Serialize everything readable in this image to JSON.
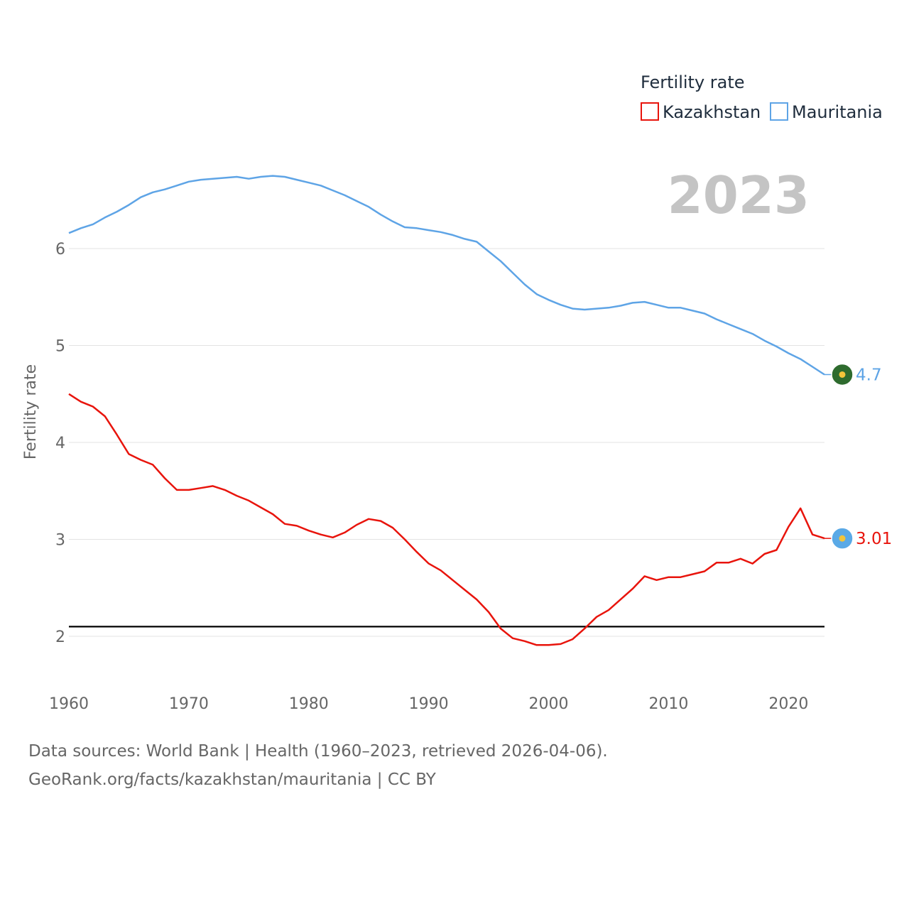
{
  "chart_data": {
    "type": "line",
    "title": "Fertility rate",
    "ylabel": "Fertility rate",
    "xlabel": "",
    "year_label": "2023",
    "xlim": [
      1960,
      2023
    ],
    "ylim": [
      1.5,
      7.3
    ],
    "x_ticks": [
      1960,
      1970,
      1980,
      1990,
      2000,
      2010,
      2020
    ],
    "y_ticks": [
      2,
      3,
      4,
      5,
      6
    ],
    "reference_line": 2.1,
    "legend_title": "Fertility rate",
    "x": [
      1960,
      1961,
      1962,
      1963,
      1964,
      1965,
      1966,
      1967,
      1968,
      1969,
      1970,
      1971,
      1972,
      1973,
      1974,
      1975,
      1976,
      1977,
      1978,
      1979,
      1980,
      1981,
      1982,
      1983,
      1984,
      1985,
      1986,
      1987,
      1988,
      1989,
      1990,
      1991,
      1992,
      1993,
      1994,
      1995,
      1996,
      1997,
      1998,
      1999,
      2000,
      2001,
      2002,
      2003,
      2004,
      2005,
      2006,
      2007,
      2008,
      2009,
      2010,
      2011,
      2012,
      2013,
      2014,
      2015,
      2016,
      2017,
      2018,
      2019,
      2020,
      2021,
      2022,
      2023
    ],
    "series": [
      {
        "name": "Kazakhstan",
        "color": "#e8140c",
        "end_label": "3.01",
        "flag_icon": "kazakhstan-flag-icon",
        "flag_color": "#5aa9e6",
        "values": [
          4.5,
          4.42,
          4.37,
          4.27,
          4.08,
          3.88,
          3.82,
          3.77,
          3.63,
          3.51,
          3.51,
          3.53,
          3.55,
          3.51,
          3.45,
          3.4,
          3.33,
          3.26,
          3.16,
          3.14,
          3.09,
          3.05,
          3.02,
          3.07,
          3.15,
          3.21,
          3.19,
          3.12,
          3.0,
          2.87,
          2.75,
          2.68,
          2.58,
          2.48,
          2.38,
          2.25,
          2.08,
          1.98,
          1.95,
          1.91,
          1.91,
          1.92,
          1.97,
          2.08,
          2.2,
          2.27,
          2.38,
          2.49,
          2.62,
          2.58,
          2.61,
          2.61,
          2.64,
          2.67,
          2.76,
          2.76,
          2.8,
          2.75,
          2.85,
          2.89,
          3.13,
          3.32,
          3.05,
          3.01
        ]
      },
      {
        "name": "Mauritania",
        "color": "#5ea4e6",
        "end_label": "4.7",
        "flag_icon": "mauritania-flag-icon",
        "flag_color": "#2e6b2e",
        "values": [
          6.16,
          6.21,
          6.25,
          6.32,
          6.38,
          6.45,
          6.53,
          6.58,
          6.61,
          6.65,
          6.69,
          6.71,
          6.72,
          6.73,
          6.74,
          6.72,
          6.74,
          6.75,
          6.74,
          6.71,
          6.68,
          6.65,
          6.6,
          6.55,
          6.49,
          6.43,
          6.35,
          6.28,
          6.22,
          6.21,
          6.19,
          6.17,
          6.14,
          6.1,
          6.07,
          5.97,
          5.87,
          5.75,
          5.63,
          5.53,
          5.47,
          5.42,
          5.38,
          5.37,
          5.38,
          5.39,
          5.41,
          5.44,
          5.45,
          5.42,
          5.39,
          5.39,
          5.36,
          5.33,
          5.27,
          5.22,
          5.17,
          5.12,
          5.05,
          4.99,
          4.92,
          4.86,
          4.78,
          4.7
        ]
      }
    ]
  },
  "footer": {
    "line1": "Data sources: World Bank | Health (1960–2023, retrieved 2026-04-06).",
    "line2": "GeoRank.org/facts/kazakhstan/mauritania | CC BY"
  }
}
